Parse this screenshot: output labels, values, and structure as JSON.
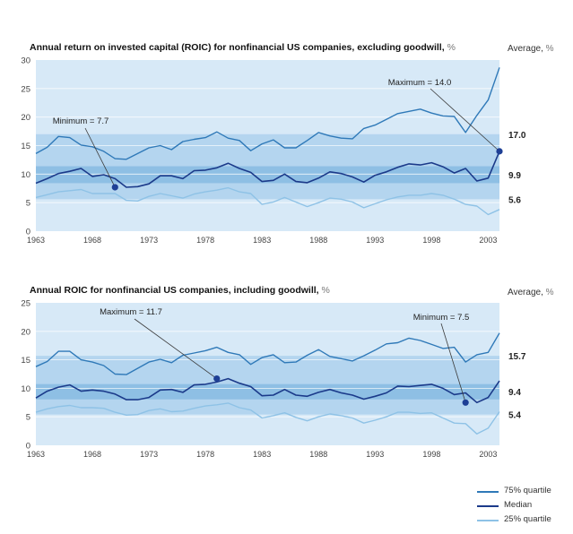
{
  "chart_data": [
    {
      "type": "line",
      "title": "Annual return on invested capital (ROIC) for nonfinancial US companies, excluding goodwill,",
      "unit": "%",
      "average_label": "Average,",
      "average_unit": "%",
      "ylim": [
        0,
        30
      ],
      "yticks": [
        "0",
        "5",
        "10",
        "15",
        "20",
        "25",
        "30"
      ],
      "xlim": [
        1963,
        2004
      ],
      "xticks": [
        "1963",
        "1968",
        "1973",
        "1978",
        "1983",
        "1988",
        "1993",
        "1998",
        "2003"
      ],
      "x": [
        1963,
        1964,
        1965,
        1966,
        1967,
        1968,
        1969,
        1970,
        1971,
        1972,
        1973,
        1974,
        1975,
        1976,
        1977,
        1978,
        1979,
        1980,
        1981,
        1982,
        1983,
        1984,
        1985,
        1986,
        1987,
        1988,
        1989,
        1990,
        1991,
        1992,
        1993,
        1994,
        1995,
        1996,
        1997,
        1998,
        1999,
        2000,
        2001,
        2002,
        2003,
        2004
      ],
      "series": [
        {
          "name": "75% quartile",
          "values": [
            13.6,
            14.7,
            16.6,
            16.4,
            15.1,
            14.8,
            14.0,
            12.7,
            12.6,
            13.6,
            14.6,
            15.0,
            14.3,
            15.7,
            16.1,
            16.4,
            17.4,
            16.3,
            15.9,
            14.1,
            15.3,
            16.0,
            14.6,
            14.6,
            15.9,
            17.3,
            16.7,
            16.3,
            16.2,
            18.0,
            18.6,
            19.6,
            20.6,
            21.0,
            21.4,
            20.7,
            20.2,
            20.1,
            17.3,
            20.3,
            23.0,
            28.7
          ]
        },
        {
          "name": "Median",
          "values": [
            8.4,
            9.2,
            10.1,
            10.5,
            11.0,
            9.6,
            9.9,
            9.2,
            7.7,
            7.8,
            8.3,
            9.7,
            9.7,
            9.2,
            10.6,
            10.7,
            11.1,
            11.9,
            11.0,
            10.3,
            8.7,
            8.9,
            10.0,
            8.7,
            8.5,
            9.3,
            10.4,
            10.1,
            9.5,
            8.6,
            9.8,
            10.4,
            11.2,
            11.8,
            11.6,
            12.0,
            11.3,
            10.2,
            11.0,
            8.8,
            9.3,
            14.0
          ]
        },
        {
          "name": "25% quartile",
          "values": [
            5.9,
            6.4,
            6.9,
            7.1,
            7.3,
            6.6,
            6.6,
            6.6,
            5.4,
            5.3,
            6.1,
            6.6,
            6.2,
            5.8,
            6.5,
            6.9,
            7.2,
            7.6,
            6.9,
            6.6,
            4.7,
            5.1,
            5.9,
            5.1,
            4.3,
            5.0,
            5.8,
            5.6,
            5.1,
            4.1,
            4.8,
            5.5,
            6.0,
            6.3,
            6.3,
            6.6,
            6.3,
            5.6,
            4.7,
            4.4,
            2.9,
            3.8
          ]
        }
      ],
      "averages": [
        {
          "series": "75% quartile",
          "value": "17.0"
        },
        {
          "series": "Median",
          "value": "9.9"
        },
        {
          "series": "25% quartile",
          "value": "5.6"
        }
      ],
      "annotations": [
        {
          "text": "Minimum = 7.7",
          "x": 1970,
          "y": 7.7
        },
        {
          "text": "Maximum = 14.0",
          "x": 2004,
          "y": 14.0
        }
      ]
    },
    {
      "type": "line",
      "title": "Annual ROIC for nonfinancial US companies, including goodwill,",
      "unit": "%",
      "average_label": "Average,",
      "average_unit": "%",
      "ylim": [
        0,
        25
      ],
      "yticks": [
        "0",
        "5",
        "10",
        "15",
        "20",
        "25"
      ],
      "xlim": [
        1963,
        2004
      ],
      "xticks": [
        "1963",
        "1968",
        "1973",
        "1978",
        "1983",
        "1988",
        "1993",
        "1998",
        "2003"
      ],
      "x": [
        1963,
        1964,
        1965,
        1966,
        1967,
        1968,
        1969,
        1970,
        1971,
        1972,
        1973,
        1974,
        1975,
        1976,
        1977,
        1978,
        1979,
        1980,
        1981,
        1982,
        1983,
        1984,
        1985,
        1986,
        1987,
        1988,
        1989,
        1990,
        1991,
        1992,
        1993,
        1994,
        1995,
        1996,
        1997,
        1998,
        1999,
        2000,
        2001,
        2002,
        2003,
        2004
      ],
      "series": [
        {
          "name": "75% quartile",
          "values": [
            13.8,
            14.7,
            16.5,
            16.5,
            15.0,
            14.6,
            14.0,
            12.5,
            12.4,
            13.5,
            14.6,
            15.1,
            14.5,
            15.8,
            16.2,
            16.6,
            17.2,
            16.3,
            15.9,
            14.2,
            15.4,
            15.9,
            14.5,
            14.6,
            15.8,
            16.8,
            15.6,
            15.2,
            14.8,
            15.7,
            16.7,
            17.8,
            18.0,
            18.8,
            18.4,
            17.7,
            17.0,
            17.2,
            14.6,
            15.9,
            16.3,
            19.7
          ]
        },
        {
          "name": "Median",
          "values": [
            8.3,
            9.5,
            10.2,
            10.6,
            9.5,
            9.7,
            9.5,
            9.0,
            8.0,
            8.0,
            8.4,
            9.7,
            9.8,
            9.3,
            10.6,
            10.7,
            11.1,
            11.7,
            10.9,
            10.3,
            8.7,
            8.8,
            9.8,
            8.8,
            8.6,
            9.3,
            9.8,
            9.2,
            8.8,
            8.1,
            8.6,
            9.2,
            10.4,
            10.3,
            10.5,
            10.7,
            10.0,
            8.9,
            9.2,
            7.5,
            8.4,
            11.3
          ]
        },
        {
          "name": "25% quartile",
          "values": [
            5.8,
            6.4,
            6.8,
            7.0,
            6.6,
            6.6,
            6.5,
            5.8,
            5.3,
            5.4,
            6.1,
            6.4,
            5.9,
            6.0,
            6.5,
            6.9,
            7.1,
            7.4,
            6.6,
            6.2,
            4.8,
            5.2,
            5.7,
            4.9,
            4.3,
            5.0,
            5.5,
            5.2,
            4.8,
            3.9,
            4.4,
            5.0,
            5.8,
            5.8,
            5.6,
            5.7,
            4.8,
            3.9,
            3.8,
            2.0,
            3.0,
            5.9
          ]
        }
      ],
      "averages": [
        {
          "series": "75% quartile",
          "value": "15.7"
        },
        {
          "series": "Median",
          "value": "9.4"
        },
        {
          "series": "25% quartile",
          "value": "5.4"
        }
      ],
      "annotations": [
        {
          "text": "Maximum = 11.7",
          "x": 1979,
          "y": 11.7
        },
        {
          "text": "Minimum = 7.5",
          "x": 2001,
          "y": 7.5
        }
      ]
    }
  ],
  "legend": [
    {
      "label": "75% quartile",
      "color": "#2f79b8"
    },
    {
      "label": "Median",
      "color": "#1b3a8a"
    },
    {
      "label": "25% quartile",
      "color": "#8ec2e6"
    }
  ],
  "colors": {
    "plot_bg": "#d7e9f7",
    "outer_band": "#b4d5ef",
    "median_band": "#8ebfe4",
    "gridline": "#ffffff",
    "q75": "#2f79b8",
    "median": "#1b3a8a",
    "q25": "#8ec2e6",
    "marker": "#1e3f95",
    "leader": "#3a3a3a"
  }
}
